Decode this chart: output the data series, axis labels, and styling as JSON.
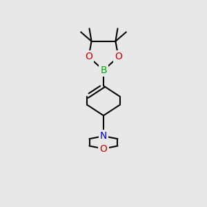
{
  "bg_color": "#e8e8e8",
  "bond_color": "#000000",
  "B_color": "#00aa00",
  "N_color": "#0000cc",
  "O_color": "#cc0000",
  "line_width": 1.5,
  "font_size": 10,
  "xlim": [
    0,
    10
  ],
  "ylim": [
    0,
    14.5
  ]
}
